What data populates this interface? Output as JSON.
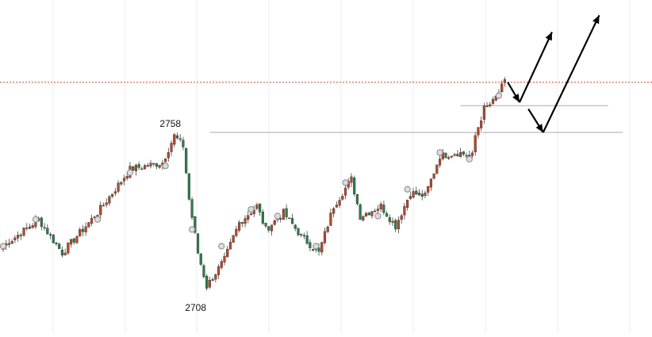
{
  "chart_data": {
    "type": "candlestick",
    "grid": true,
    "colors": {
      "up": "#b5482c",
      "down": "#2e7d4a",
      "wick": "#444444",
      "resistance_line": "#d04a2a",
      "level_line": "#aaaaaa",
      "arrow": "#000000",
      "grid": "#eeeeee",
      "marker_fill": "#dddddd",
      "marker_stroke": "#888888"
    },
    "annotations": [
      {
        "label": "2758",
        "price": 2758
      },
      {
        "label": "2708",
        "price": 2708
      }
    ],
    "horizontal_levels": [
      {
        "price": 2773,
        "style": "dotted",
        "color_key": "resistance_line"
      },
      {
        "price": 2766,
        "style": "solid",
        "color_key": "level_line",
        "from_bar": 155,
        "to_bar": 205
      },
      {
        "price": 2758,
        "style": "solid",
        "color_key": "level_line",
        "from_bar": 70,
        "to_bar": 210
      }
    ],
    "projection_arrows": [
      {
        "from": [
          171,
          2773
        ],
        "to": [
          175,
          2767
        ]
      },
      {
        "from": [
          175,
          2767
        ],
        "to": [
          186,
          2788
        ]
      },
      {
        "from": [
          178,
          2765
        ],
        "to": [
          183,
          2758
        ]
      },
      {
        "from": [
          183,
          2758
        ],
        "to": [
          202,
          2793
        ]
      }
    ],
    "anchor_points": [
      {
        "bar": 0,
        "close": 2724
      },
      {
        "bar": 12,
        "close": 2732
      },
      {
        "bar": 20,
        "close": 2722
      },
      {
        "bar": 32,
        "close": 2734
      },
      {
        "bar": 43,
        "close": 2747
      },
      {
        "bar": 54,
        "close": 2749
      },
      {
        "bar": 58,
        "close": 2757
      },
      {
        "bar": 61,
        "close": 2754
      },
      {
        "bar": 63,
        "close": 2738
      },
      {
        "bar": 66,
        "close": 2722
      },
      {
        "bar": 69,
        "close": 2712
      },
      {
        "bar": 75,
        "close": 2720
      },
      {
        "bar": 80,
        "close": 2731
      },
      {
        "bar": 86,
        "close": 2736
      },
      {
        "bar": 89,
        "close": 2729
      },
      {
        "bar": 95,
        "close": 2734
      },
      {
        "bar": 101,
        "close": 2727
      },
      {
        "bar": 107,
        "close": 2722
      },
      {
        "bar": 112,
        "close": 2736
      },
      {
        "bar": 118,
        "close": 2744
      },
      {
        "bar": 121,
        "close": 2733
      },
      {
        "bar": 128,
        "close": 2736
      },
      {
        "bar": 133,
        "close": 2730
      },
      {
        "bar": 138,
        "close": 2740
      },
      {
        "bar": 143,
        "close": 2739
      },
      {
        "bar": 148,
        "close": 2751
      },
      {
        "bar": 154,
        "close": 2752
      },
      {
        "bar": 159,
        "close": 2751
      },
      {
        "bar": 160,
        "close": 2757
      },
      {
        "bar": 163,
        "close": 2765
      },
      {
        "bar": 166,
        "close": 2767
      },
      {
        "bar": 170,
        "close": 2773
      }
    ],
    "markers": [
      {
        "bar": 0,
        "price": 2724
      },
      {
        "bar": 11,
        "price": 2732
      },
      {
        "bar": 43,
        "price": 2746
      },
      {
        "bar": 55,
        "price": 2748
      },
      {
        "bar": 32,
        "price": 2732
      },
      {
        "bar": 64,
        "price": 2729
      },
      {
        "bar": 74,
        "price": 2724
      },
      {
        "bar": 84,
        "price": 2735
      },
      {
        "bar": 93,
        "price": 2733
      },
      {
        "bar": 106,
        "price": 2724
      },
      {
        "bar": 116,
        "price": 2743
      },
      {
        "bar": 127,
        "price": 2733
      },
      {
        "bar": 137,
        "price": 2741
      },
      {
        "bar": 148,
        "price": 2752
      },
      {
        "bar": 158,
        "price": 2750
      },
      {
        "bar": 168,
        "price": 2769
      }
    ]
  }
}
